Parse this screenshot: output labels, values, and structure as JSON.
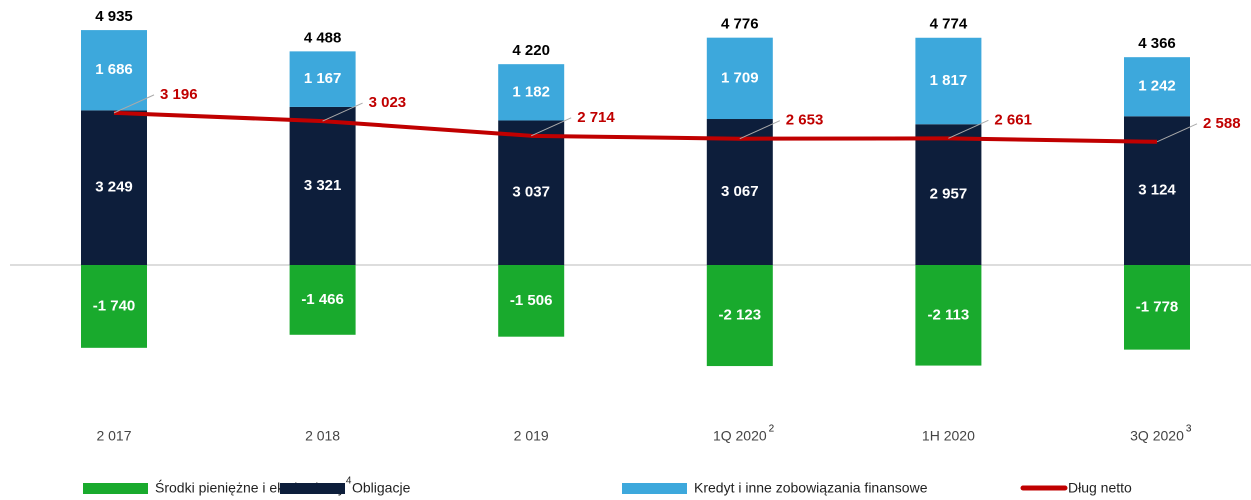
{
  "chart_data": {
    "type": "bar",
    "stacked": true,
    "categories": [
      "2 017",
      "2 018",
      "2 019",
      "1Q 2020",
      "1H 2020",
      "3Q 2020"
    ],
    "category_notes": [
      null,
      null,
      null,
      "2",
      null,
      "3"
    ],
    "series": [
      {
        "name": "Środki pieniężne i ekwiwalenty",
        "note": "4",
        "color": "#19aa2d",
        "values": [
          -1740,
          -1466,
          -1506,
          -2123,
          -2113,
          -1778
        ],
        "value_labels": [
          "-1 740",
          "-1 466",
          "-1 506",
          "-2 123",
          "-2 113",
          "-1 778"
        ]
      },
      {
        "name": "Obligacje",
        "color": "#0d1e3b",
        "values": [
          3249,
          3321,
          3037,
          3067,
          2957,
          3124
        ],
        "value_labels": [
          "3 249",
          "3 321",
          "3 037",
          "3 067",
          "2 957",
          "3 124"
        ]
      },
      {
        "name": "Kredyt i inne zobowiązania finansowe",
        "color": "#3da8dc",
        "values": [
          1686,
          1167,
          1182,
          1709,
          1817,
          1242
        ],
        "value_labels": [
          "1 686",
          "1 167",
          "1 182",
          "1 709",
          "1 817",
          "1 242"
        ]
      },
      {
        "name": "Dług netto",
        "type": "line",
        "color": "#c00000",
        "values": [
          3196,
          3023,
          2714,
          2653,
          2661,
          2588
        ],
        "value_labels": [
          "3 196",
          "3 023",
          "2 714",
          "2 653",
          "2 661",
          "2 588"
        ]
      }
    ],
    "totals": [
      4935,
      4488,
      4220,
      4776,
      4774,
      4366
    ],
    "total_labels": [
      "4 935",
      "4 488",
      "4 220",
      "4 776",
      "4 774",
      "4 366"
    ]
  }
}
